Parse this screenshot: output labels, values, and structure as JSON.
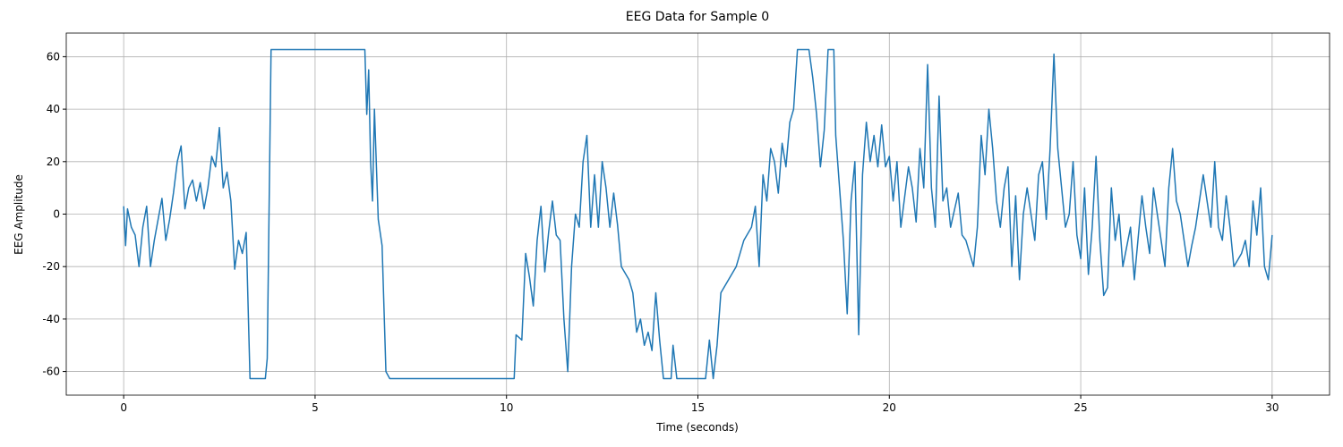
{
  "chart_data": {
    "type": "line",
    "title": "EEG Data for Sample 0",
    "x_label": "Time (seconds)",
    "y_label": "EEG Amplitude",
    "x": [
      0,
      0.05,
      0.1,
      0.2,
      0.3,
      0.4,
      0.5,
      0.6,
      0.7,
      0.8,
      1.0,
      1.1,
      1.2,
      1.3,
      1.4,
      1.5,
      1.6,
      1.7,
      1.8,
      1.9,
      2.0,
      2.1,
      2.2,
      2.3,
      2.4,
      2.5,
      2.6,
      2.7,
      2.8,
      2.9,
      3.0,
      3.1,
      3.2,
      3.3,
      3.7,
      3.75,
      3.85,
      6.3,
      6.35,
      6.4,
      6.45,
      6.5,
      6.55,
      6.65,
      6.75,
      6.85,
      6.95,
      10.2,
      10.25,
      10.4,
      10.5,
      10.6,
      10.7,
      10.8,
      10.9,
      11.0,
      11.1,
      11.2,
      11.3,
      11.4,
      11.5,
      11.6,
      11.7,
      11.8,
      11.9,
      12.0,
      12.1,
      12.2,
      12.3,
      12.4,
      12.5,
      12.6,
      12.7,
      12.8,
      12.9,
      13.0,
      13.2,
      13.3,
      13.4,
      13.5,
      13.6,
      13.7,
      13.8,
      13.9,
      14.0,
      14.1,
      14.3,
      14.35,
      14.45,
      15.2,
      15.3,
      15.4,
      15.5,
      15.6,
      15.8,
      16.0,
      16.2,
      16.4,
      16.5,
      16.6,
      16.7,
      16.8,
      16.9,
      17.0,
      17.1,
      17.2,
      17.3,
      17.4,
      17.5,
      17.6,
      17.9,
      18.0,
      18.1,
      18.2,
      18.3,
      18.4,
      18.55,
      18.6,
      18.8,
      18.9,
      19.0,
      19.1,
      19.2,
      19.3,
      19.4,
      19.5,
      19.6,
      19.7,
      19.8,
      19.9,
      20.0,
      20.1,
      20.2,
      20.3,
      20.5,
      20.6,
      20.7,
      20.8,
      20.9,
      21.0,
      21.1,
      21.2,
      21.3,
      21.4,
      21.5,
      21.6,
      21.8,
      21.9,
      22.0,
      22.2,
      22.3,
      22.4,
      22.5,
      22.6,
      22.7,
      22.8,
      22.9,
      23.0,
      23.1,
      23.2,
      23.3,
      23.4,
      23.5,
      23.6,
      23.8,
      23.9,
      24.0,
      24.1,
      24.2,
      24.3,
      24.4,
      24.5,
      24.6,
      24.7,
      24.8,
      24.9,
      25.0,
      25.1,
      25.2,
      25.3,
      25.4,
      25.5,
      25.6,
      25.7,
      25.8,
      25.9,
      26.0,
      26.1,
      26.3,
      26.4,
      26.6,
      26.7,
      26.8,
      26.9,
      27.0,
      27.1,
      27.2,
      27.3,
      27.4,
      27.5,
      27.6,
      27.7,
      27.8,
      27.9,
      28.0,
      28.2,
      28.3,
      28.4,
      28.5,
      28.6,
      28.7,
      28.8,
      28.9,
      29.0,
      29.2,
      29.3,
      29.4,
      29.5,
      29.6,
      29.7,
      29.8,
      29.9,
      30.0
    ],
    "series": [
      {
        "color": "#1f77b4",
        "values": [
          3,
          -12,
          2,
          -5,
          -8,
          -20,
          -5,
          3,
          -20,
          -10,
          6,
          -10,
          -2,
          8,
          20,
          26,
          2,
          10,
          13,
          5,
          12,
          2,
          10,
          22,
          18,
          33,
          10,
          16,
          5,
          -21,
          -10,
          -15,
          -7,
          -62.7,
          -62.7,
          -55,
          62.7,
          62.7,
          38,
          55,
          20,
          5,
          40,
          -2,
          -12,
          -60,
          -62.7,
          -62.7,
          -46,
          -48,
          -15,
          -24,
          -35,
          -10,
          3,
          -22,
          -7,
          5,
          -8,
          -10,
          -40,
          -60,
          -20,
          0,
          -5,
          20,
          30,
          -5,
          15,
          -5,
          20,
          10,
          -5,
          8,
          -4,
          -20,
          -25,
          -30,
          -45,
          -40,
          -50,
          -45,
          -52,
          -30,
          -48,
          -62.7,
          -62.7,
          -50,
          -62.7,
          -62.7,
          -48,
          -62.7,
          -50,
          -30,
          -25,
          -20,
          -10,
          -5,
          3,
          -20,
          15,
          5,
          25,
          20,
          8,
          27,
          18,
          35,
          40,
          62.7,
          62.7,
          52,
          38,
          18,
          32,
          62.7,
          62.7,
          30,
          -10,
          -38,
          5,
          20,
          -46,
          15,
          35,
          20,
          30,
          18,
          34,
          18,
          22,
          5,
          20,
          -5,
          18,
          10,
          -3,
          25,
          10,
          57,
          10,
          -5,
          45,
          5,
          10,
          -5,
          8,
          -8,
          -10,
          -20,
          -5,
          30,
          15,
          40,
          25,
          5,
          -5,
          10,
          18,
          -20,
          7,
          -25,
          0,
          10,
          -10,
          15,
          20,
          -2,
          25,
          61,
          25,
          10,
          -5,
          0,
          20,
          -8,
          -17,
          10,
          -23,
          -5,
          22,
          -10,
          -31,
          -28,
          10,
          -10,
          0,
          -20,
          -5,
          -25,
          7,
          -5,
          -15,
          10,
          0,
          -10,
          -20,
          10,
          25,
          5,
          0,
          -10,
          -20,
          -12,
          -5,
          15,
          5,
          -5,
          20,
          -5,
          -10,
          7,
          -5,
          -20,
          -15,
          -10,
          -20,
          5,
          -8,
          10,
          -20,
          -25,
          -8
        ]
      }
    ],
    "xlim": [
      -1.5,
      31.5
    ],
    "ylim": [
      -69,
      69
    ],
    "xticks": [
      0,
      5,
      10,
      15,
      20,
      25,
      30
    ],
    "yticks": [
      -60,
      -40,
      -20,
      0,
      20,
      40,
      60
    ],
    "grid": true
  }
}
